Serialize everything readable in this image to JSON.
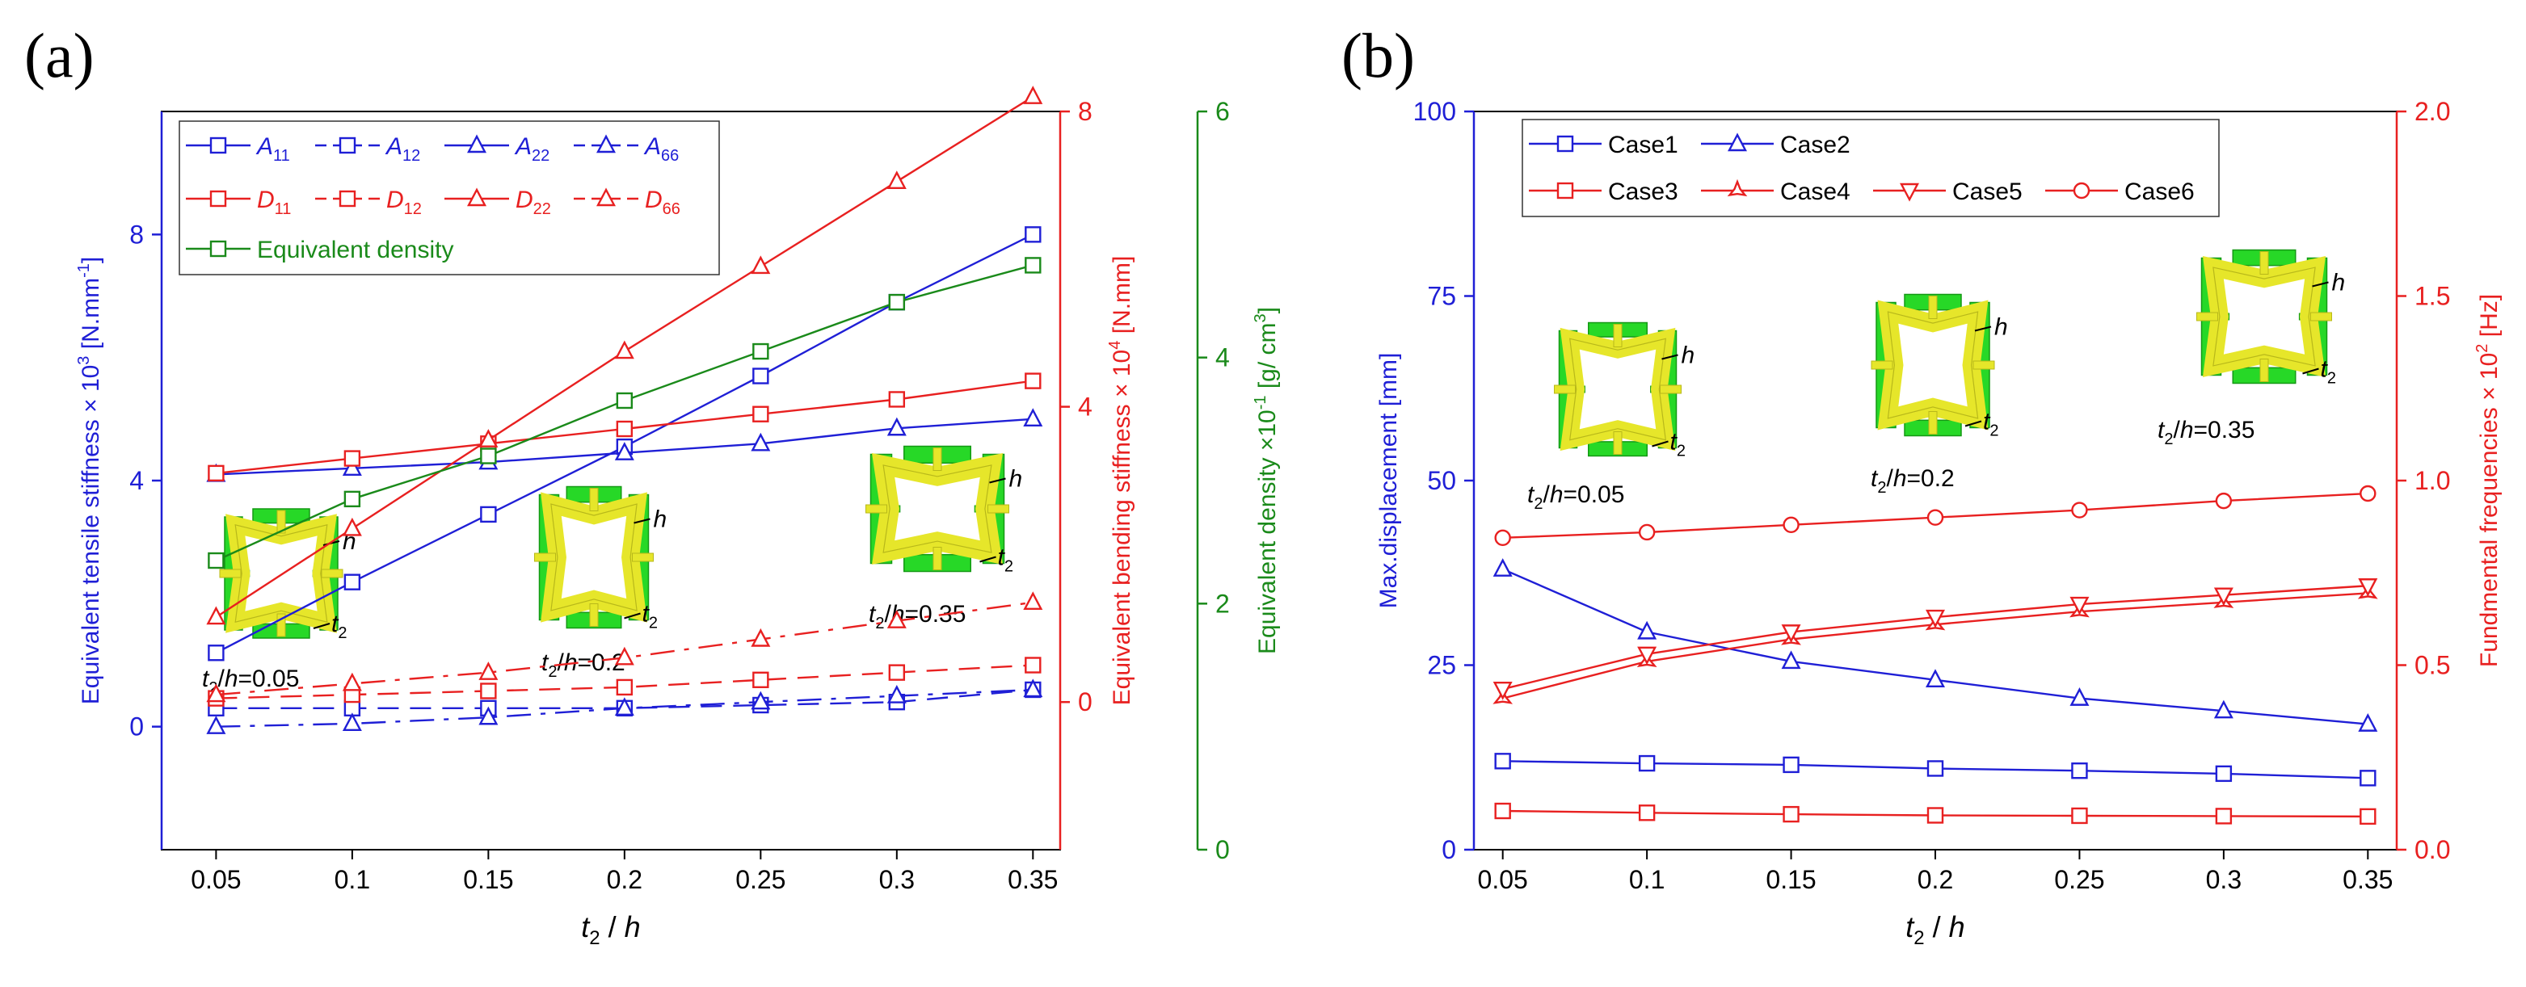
{
  "chart_data": [
    {
      "id": "a",
      "panel_label": "(a)",
      "type": "line",
      "x": [
        0.05,
        0.1,
        0.15,
        0.2,
        0.25,
        0.3,
        0.35
      ],
      "x_ticks": [
        "0.05",
        "0.1",
        "0.15",
        "0.2",
        "0.25",
        "0.3",
        "0.35"
      ],
      "xlim": [
        0.03,
        0.36
      ],
      "xlabel": {
        "t": "t",
        "sub": "2",
        "rest": " / ",
        "h": "h"
      },
      "axes": {
        "left": {
          "ylim": [
            -2.0,
            10.0
          ],
          "ticks": [
            "0",
            "4",
            "8"
          ],
          "tick_values": [
            0,
            4,
            8
          ],
          "color": "#1f1fd6",
          "label": {
            "main": "Equivalent tensile stiffness × 10",
            "sup": "3",
            "unit_main": " [N.mm",
            "unit_sup": "-1",
            "unit_end": "]"
          }
        },
        "right1": {
          "ylim": [
            -2.0,
            8.0
          ],
          "ticks": [
            "0",
            "4",
            "8"
          ],
          "tick_values": [
            0,
            4,
            8
          ],
          "color": "#e82020",
          "label": {
            "main": "Equivalent bending stiffness × 10",
            "sup": "4",
            "unit_main": " [N.mm]"
          }
        },
        "right2": {
          "ylim": [
            0,
            6
          ],
          "ticks": [
            "0",
            "2",
            "4",
            "6"
          ],
          "tick_values": [
            0,
            2,
            4,
            6
          ],
          "color": "#1a8a1a",
          "label": {
            "main": "Equivalent density ×10",
            "sup": "-1",
            "unit_main": " [g/ cm",
            "unit_sup": "3",
            "unit_end": "]"
          }
        }
      },
      "series": [
        {
          "name": "A11",
          "sym": "A",
          "sub": "11",
          "axis": "left",
          "color": "#1f1fd6",
          "marker": "square",
          "dash": "solid",
          "values": [
            1.2,
            2.35,
            3.45,
            4.55,
            5.7,
            6.9,
            8.0
          ]
        },
        {
          "name": "A12",
          "sym": "A",
          "sub": "12",
          "axis": "left",
          "color": "#1f1fd6",
          "marker": "square",
          "dash": "dashed",
          "values": [
            0.3,
            0.3,
            0.3,
            0.3,
            0.35,
            0.4,
            0.6
          ]
        },
        {
          "name": "A22",
          "sym": "A",
          "sub": "22",
          "axis": "left",
          "color": "#1f1fd6",
          "marker": "triangle",
          "dash": "solid",
          "values": [
            4.1,
            4.2,
            4.3,
            4.45,
            4.6,
            4.85,
            5.0
          ]
        },
        {
          "name": "A66",
          "sym": "A",
          "sub": "66",
          "axis": "left",
          "color": "#1f1fd6",
          "marker": "triangle",
          "dash": "dashdot",
          "values": [
            0.0,
            0.05,
            0.15,
            0.3,
            0.4,
            0.5,
            0.6
          ]
        },
        {
          "name": "D11",
          "sym": "D",
          "sub": "11",
          "axis": "right1",
          "color": "#e82020",
          "marker": "square",
          "dash": "solid",
          "values": [
            3.1,
            3.3,
            3.5,
            3.7,
            3.9,
            4.1,
            4.35
          ]
        },
        {
          "name": "D12",
          "sym": "D",
          "sub": "12",
          "axis": "right1",
          "color": "#e82020",
          "marker": "square",
          "dash": "dashed",
          "values": [
            0.05,
            0.1,
            0.15,
            0.2,
            0.3,
            0.4,
            0.5
          ]
        },
        {
          "name": "D22",
          "sym": "D",
          "sub": "22",
          "axis": "right1",
          "color": "#e82020",
          "marker": "triangle",
          "dash": "solid",
          "values": [
            1.15,
            2.35,
            3.55,
            4.75,
            5.9,
            7.05,
            8.2
          ]
        },
        {
          "name": "D66",
          "sym": "D",
          "sub": "66",
          "axis": "right1",
          "color": "#e82020",
          "marker": "triangle",
          "dash": "dashdot",
          "values": [
            0.1,
            0.25,
            0.4,
            0.6,
            0.85,
            1.1,
            1.35
          ]
        },
        {
          "name": "Equivalent density",
          "label": "Equivalent density",
          "axis": "right2",
          "color": "#1a8a1a",
          "marker": "square",
          "dash": "solid",
          "values": [
            2.35,
            2.85,
            3.2,
            3.65,
            4.05,
            4.45,
            4.75
          ]
        }
      ],
      "insets": [
        {
          "ratio": "0.05"
        },
        {
          "ratio": "0.2"
        },
        {
          "ratio": "0.35"
        }
      ]
    },
    {
      "id": "b",
      "panel_label": "(b)",
      "type": "line",
      "x": [
        0.05,
        0.1,
        0.15,
        0.2,
        0.25,
        0.3,
        0.35
      ],
      "x_ticks": [
        "0.05",
        "0.1",
        "0.15",
        "0.2",
        "0.25",
        "0.3",
        "0.35"
      ],
      "xlim": [
        0.04,
        0.36
      ],
      "xlabel": {
        "t": "t",
        "sub": "2",
        "rest": " / ",
        "h": "h"
      },
      "axes": {
        "left": {
          "ylim": [
            0,
            100
          ],
          "ticks": [
            "0",
            "25",
            "50",
            "75",
            "100"
          ],
          "tick_values": [
            0,
            25,
            50,
            75,
            100
          ],
          "color": "#1f1fd6",
          "label": {
            "main": "Max.displacement [mm]"
          }
        },
        "right": {
          "ylim": [
            0,
            2.0
          ],
          "ticks": [
            "0.0",
            "0.5",
            "1.0",
            "1.5",
            "2.0"
          ],
          "tick_values": [
            0,
            0.5,
            1.0,
            1.5,
            2.0
          ],
          "color": "#e82020",
          "label": {
            "main": "Fundmental frequencies × 10",
            "sup": "2",
            "unit_main": " [Hz]"
          }
        }
      },
      "series": [
        {
          "name": "Case1",
          "axis": "left",
          "color": "#1f1fd6",
          "marker": "square",
          "values": [
            12.0,
            11.7,
            11.5,
            11.0,
            10.7,
            10.3,
            9.7
          ]
        },
        {
          "name": "Case2",
          "axis": "left",
          "color": "#1f1fd6",
          "marker": "triangle",
          "values": [
            38.0,
            29.5,
            25.5,
            23.0,
            20.5,
            18.8,
            17.0
          ]
        },
        {
          "name": "Case3",
          "axis": "right",
          "color": "#e82020",
          "marker": "square",
          "values": [
            0.105,
            0.1,
            0.096,
            0.093,
            0.092,
            0.091,
            0.09
          ]
        },
        {
          "name": "Case4",
          "axis": "right",
          "color": "#e82020",
          "marker": "star",
          "values": [
            0.41,
            0.51,
            0.57,
            0.61,
            0.645,
            0.67,
            0.695
          ]
        },
        {
          "name": "Case5",
          "axis": "right",
          "color": "#e82020",
          "marker": "triangle-down",
          "values": [
            0.435,
            0.53,
            0.59,
            0.63,
            0.665,
            0.69,
            0.715
          ]
        },
        {
          "name": "Case6",
          "axis": "right",
          "color": "#e82020",
          "marker": "circle",
          "values": [
            0.845,
            0.86,
            0.88,
            0.9,
            0.92,
            0.945,
            0.965
          ]
        }
      ],
      "insets": [
        {
          "ratio": "0.05"
        },
        {
          "ratio": "0.2"
        },
        {
          "ratio": "0.35"
        }
      ]
    }
  ]
}
